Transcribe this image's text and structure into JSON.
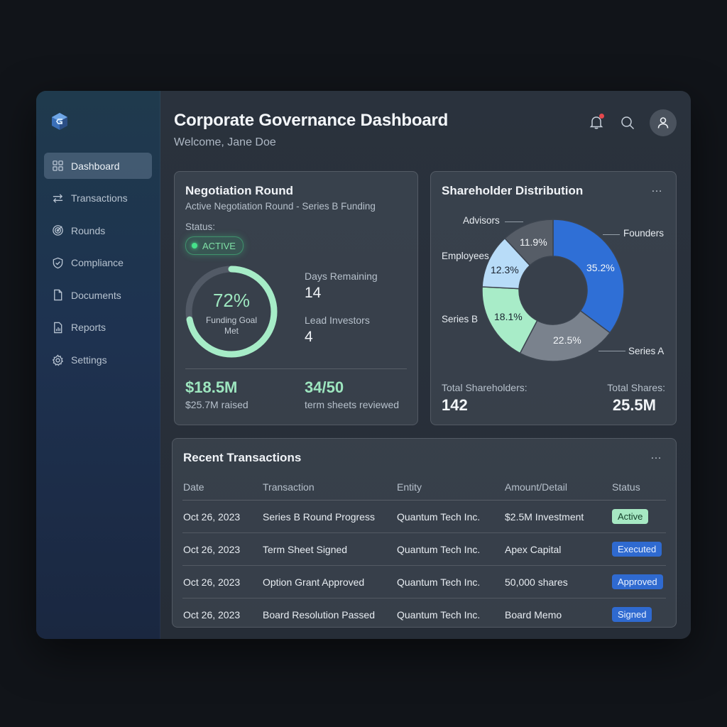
{
  "header": {
    "title": "Corporate Governance Dashboard",
    "welcome": "Welcome, Jane Doe"
  },
  "sidebar": {
    "items": [
      {
        "label": "Dashboard",
        "icon": "grid-icon",
        "active": true
      },
      {
        "label": "Transactions",
        "icon": "arrows-swap-icon",
        "active": false
      },
      {
        "label": "Rounds",
        "icon": "target-icon",
        "active": false
      },
      {
        "label": "Compliance",
        "icon": "shield-check-icon",
        "active": false
      },
      {
        "label": "Documents",
        "icon": "document-icon",
        "active": false
      },
      {
        "label": "Reports",
        "icon": "report-chart-icon",
        "active": false
      },
      {
        "label": "Settings",
        "icon": "gear-icon",
        "active": false
      }
    ]
  },
  "negotiation": {
    "title": "Negotiation Round",
    "subtitle": "Active Negotiation Round - Series B Funding",
    "status_label": "Status:",
    "status_value": "ACTIVE",
    "gauge_pct": "72%",
    "gauge_fraction": 0.72,
    "gauge_label": "Funding Goal Met",
    "days_label": "Days Remaining",
    "days_value": "14",
    "investors_label": "Lead Investors",
    "investors_value": "4",
    "raised_value": "$18.5M",
    "raised_label": "$25.7M raised",
    "sheets_value": "34/50",
    "sheets_label": "term sheets reviewed"
  },
  "shareholders": {
    "title": "Shareholder Distribution",
    "more": "…",
    "total_label": "Total Shareholders:",
    "total_value": "142",
    "shares_label": "Total Shares:",
    "shares_value": "25.5M"
  },
  "chart_data": {
    "type": "pie",
    "categories": [
      "Founders",
      "Series A",
      "Series B",
      "Employees",
      "Advisors"
    ],
    "values": [
      35.2,
      22.5,
      18.1,
      12.3,
      11.9
    ],
    "labels": [
      "35.2%",
      "22.5%",
      "18.1%",
      "12.3%",
      "11.9%"
    ],
    "colors": [
      "#2f6fd6",
      "#7a828d",
      "#a8ecc8",
      "#b8dcf8",
      "#565d67"
    ]
  },
  "transactions": {
    "title": "Recent Transactions",
    "more": "…",
    "columns": [
      "Date",
      "Transaction",
      "Entity",
      "Amount/Detail",
      "Status"
    ],
    "rows": [
      {
        "date": "Oct 26, 2023",
        "transaction": "Series B Round Progress",
        "entity": "Quantum Tech Inc.",
        "amount": "$2.5M Investment",
        "status": "Active",
        "status_color": "green"
      },
      {
        "date": "Oct 26, 2023",
        "transaction": "Term Sheet Signed",
        "entity": "Quantum Tech Inc.",
        "amount": "Apex Capital",
        "status": "Executed",
        "status_color": "blue"
      },
      {
        "date": "Oct 26, 2023",
        "transaction": "Option Grant Approved",
        "entity": "Quantum Tech Inc.",
        "amount": "50,000 shares",
        "status": "Approved",
        "status_color": "blue"
      },
      {
        "date": "Oct 26, 2023",
        "transaction": "Board Resolution Passed",
        "entity": "Quantum Tech Inc.",
        "amount": "Board Memo",
        "status": "Signed",
        "status_color": "blue"
      }
    ]
  }
}
